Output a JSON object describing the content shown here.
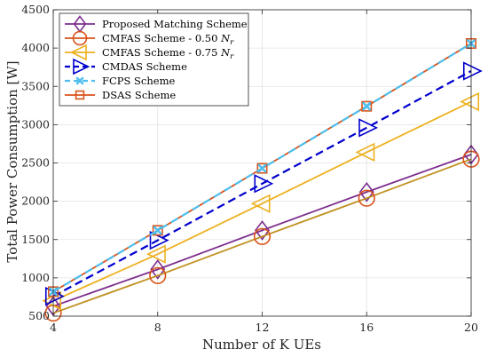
{
  "chart_data": {
    "type": "line",
    "xlabel": "Number of K UEs",
    "ylabel": "Total Power Consumption [W]",
    "x": [
      4,
      8,
      12,
      16,
      20
    ],
    "xticks": [
      4,
      8,
      12,
      16,
      20
    ],
    "xlim": [
      4,
      20
    ],
    "ylim": [
      500,
      4500
    ],
    "yticks": [
      500,
      1000,
      1500,
      2000,
      2500,
      3000,
      3500,
      4000,
      4500
    ],
    "grid": true,
    "legend_position": "top-left",
    "series": [
      {
        "name": "Proposed Matching Scheme",
        "values": [
          630,
          1110,
          1620,
          2120,
          2610
        ],
        "color": "#7e2f8e",
        "marker": "diamond",
        "dash": "solid"
      },
      {
        "name": "CMFAS Scheme - 0.50 N_r",
        "values": [
          540,
          1030,
          1540,
          2040,
          2550
        ],
        "color": "#d95319",
        "line_color": "#c09020",
        "marker": "circle",
        "dash": "solid"
      },
      {
        "name": "CMFAS Scheme - 0.75 N_r",
        "values": [
          700,
          1310,
          1970,
          2640,
          3300
        ],
        "color": "#edb120",
        "marker": "triangle-left",
        "dash": "solid"
      },
      {
        "name": "CMDAS Scheme",
        "values": [
          760,
          1490,
          2230,
          2960,
          3700
        ],
        "color": "#0000cd",
        "marker": "triangle-right",
        "dash": "dashed"
      },
      {
        "name": "FCPS Scheme",
        "values": [
          820,
          1620,
          2430,
          3240,
          4060
        ],
        "color": "#4dbeee",
        "marker": "x",
        "dash": "dashed"
      },
      {
        "name": "DSAS Scheme",
        "values": [
          820,
          1620,
          2430,
          3240,
          4060
        ],
        "color": "#d95319",
        "marker": "square",
        "dash": "solid"
      }
    ]
  }
}
